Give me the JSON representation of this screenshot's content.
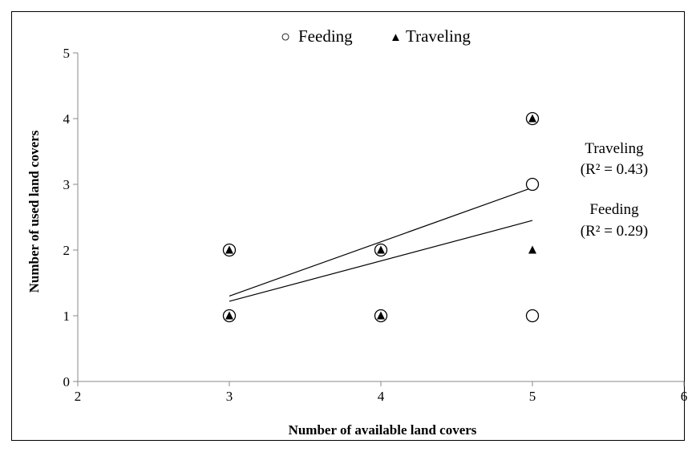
{
  "chart_data": {
    "type": "scatter",
    "xlabel": "Number of available land covers",
    "ylabel": "Number of used land covers",
    "xlim": [
      2,
      6
    ],
    "ylim": [
      0,
      5
    ],
    "xticks": [
      2,
      3,
      4,
      5,
      6
    ],
    "yticks": [
      0,
      1,
      2,
      3,
      4,
      5
    ],
    "grid": false,
    "legend_position": "top-center",
    "series": [
      {
        "name": "Feeding",
        "marker": "open-circle",
        "points": [
          [
            3,
            1
          ],
          [
            3,
            2
          ],
          [
            4,
            1
          ],
          [
            4,
            2
          ],
          [
            5,
            1
          ],
          [
            5,
            3
          ],
          [
            5,
            4
          ]
        ],
        "trendline": [
          [
            3,
            1.22
          ],
          [
            5,
            2.45
          ]
        ],
        "annotation": [
          "Feeding",
          "(R² = 0.29)"
        ]
      },
      {
        "name": "Traveling",
        "marker": "filled-triangle",
        "points": [
          [
            3,
            1
          ],
          [
            3,
            2
          ],
          [
            4,
            1
          ],
          [
            4,
            2
          ],
          [
            5,
            2
          ],
          [
            5,
            4
          ]
        ],
        "trendline": [
          [
            3,
            1.3
          ],
          [
            5,
            2.95
          ]
        ],
        "annotation": [
          "Traveling",
          "(R² = 0.43)"
        ]
      }
    ],
    "legend": {
      "feeding_symbol": "○",
      "feeding_label": "Feeding",
      "traveling_symbol": "▲",
      "traveling_label": "Traveling"
    }
  }
}
